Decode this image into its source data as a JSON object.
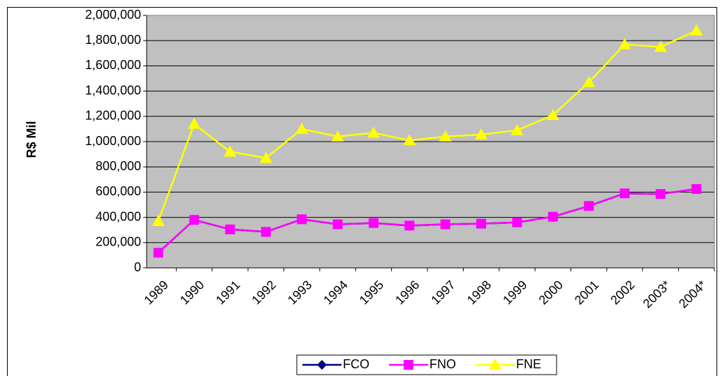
{
  "chart_data": {
    "type": "line",
    "y_label": "R$ Mil",
    "categories": [
      "1989",
      "1990",
      "1991",
      "1992",
      "1993",
      "1994",
      "1995",
      "1996",
      "1997",
      "1998",
      "1999",
      "2000",
      "2001",
      "2002",
      "2003*",
      "2004*"
    ],
    "series": [
      {
        "name": "FCO",
        "color": "#000080",
        "marker": "diamond",
        "values": [
          120000,
          380000,
          305000,
          285000,
          385000,
          345000,
          355000,
          335000,
          345000,
          350000,
          360000,
          405000,
          490000,
          590000,
          585000,
          625000
        ]
      },
      {
        "name": "FNO",
        "color": "#ff00ff",
        "marker": "square",
        "values": [
          120000,
          380000,
          305000,
          285000,
          385000,
          345000,
          355000,
          335000,
          345000,
          350000,
          360000,
          405000,
          490000,
          590000,
          585000,
          625000
        ]
      },
      {
        "name": "FNE",
        "color": "#ffff00",
        "marker": "triangle",
        "values": [
          370000,
          1140000,
          920000,
          870000,
          1100000,
          1040000,
          1070000,
          1010000,
          1040000,
          1055000,
          1090000,
          1210000,
          1470000,
          1770000,
          1750000,
          1880000
        ]
      }
    ],
    "ylim": [
      0,
      2000000
    ],
    "yticks": [
      0,
      {
        "value": 200000,
        "label": "200,000"
      },
      {
        "value": 400000,
        "label": "400,000"
      },
      {
        "value": 600000,
        "label": "600,000"
      },
      {
        "value": 800000,
        "label": "800,000"
      },
      {
        "value": 1000000,
        "label": "1,000,000"
      },
      {
        "value": 1200000,
        "label": "1,200,000"
      },
      {
        "value": 1400000,
        "label": "1,400,000"
      },
      {
        "value": 1600000,
        "label": "1,600,000"
      },
      {
        "value": 1800000,
        "label": "1,800,000"
      },
      {
        "value": 2000000,
        "label": "2,000,000"
      }
    ],
    "grid": true,
    "plot_background": "#c0c0c0",
    "legend": "bottom"
  }
}
